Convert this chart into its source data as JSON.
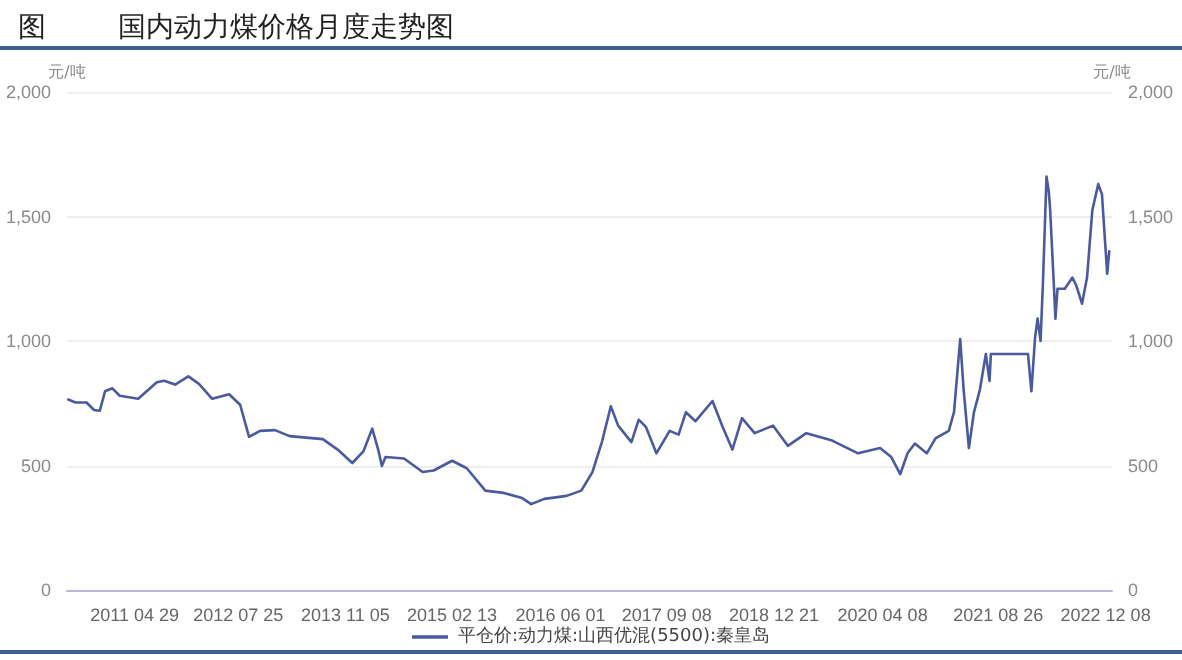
{
  "chart_data": {
    "type": "line",
    "title": "国内动力煤价格月度走势图",
    "annotations": [
      "图"
    ],
    "ylabel": "元/吨",
    "y2label": "元/吨",
    "xlim": [
      "2010-07-08",
      "2023-01-05"
    ],
    "xticks": [
      {
        "value": "2011-04-29",
        "label": "2011 04 29"
      },
      {
        "value": "2012-07-25",
        "label": "2012 07 25"
      },
      {
        "value": "2013-11-05",
        "label": "2013 11 05"
      },
      {
        "value": "2015-02-13",
        "label": "2015 02 13"
      },
      {
        "value": "2016-06-01",
        "label": "2016 06 01"
      },
      {
        "value": "2017-09-08",
        "label": "2017 09 08"
      },
      {
        "value": "2018-12-21",
        "label": "2018 12 21"
      },
      {
        "value": "2020-04-08",
        "label": "2020 04 08"
      },
      {
        "value": "2021-08-26",
        "label": "2021 08 26"
      },
      {
        "value": "2022-12-08",
        "label": "2022 12 08"
      }
    ],
    "ylim": [
      0,
      2000
    ],
    "yticks": [
      0,
      500,
      {
        "value": 1000,
        "label": "1,000"
      },
      {
        "value": 1500,
        "label": "1,500"
      },
      {
        "value": 2000,
        "label": "2,000"
      }
    ],
    "y2lim": [
      0,
      2000
    ],
    "y2ticks": [
      0,
      500,
      {
        "value": 1000,
        "label": "1,000"
      },
      {
        "value": 1500,
        "label": "1,500"
      },
      {
        "value": 2000,
        "label": "2,000"
      }
    ],
    "grid": "y",
    "legend": "bottom",
    "marker": "none",
    "line_style": "solid",
    "x": [
      "2010-07-13",
      "2010-08-14",
      "2010-10-01",
      "2010-11-03",
      "2010-11-28",
      "2010-12-21",
      "2011-01-22",
      "2011-02-23",
      "2011-05-15",
      "2011-08-04",
      "2011-09-05",
      "2011-10-23",
      "2011-12-20",
      "2012-02-04",
      "2012-04-02",
      "2012-06-15",
      "2012-08-02",
      "2012-09-10",
      "2012-10-28",
      "2013-01-01",
      "2013-03-06",
      "2013-07-29",
      "2013-10-02",
      "2013-12-05",
      "2014-01-23",
      "2014-03-02",
      "2014-03-28",
      "2014-04-13",
      "2014-04-29",
      "2014-07-19",
      "2014-10-08",
      "2014-11-25",
      "2015-02-14",
      "2015-04-19",
      "2015-07-09",
      "2015-09-27",
      "2015-12-17",
      "2016-01-25",
      "2016-03-23",
      "2016-06-28",
      "2016-08-31",
      "2016-10-19",
      "2016-11-29",
      "2017-01-07",
      "2017-02-08",
      "2017-04-07",
      "2017-05-09",
      "2017-06-10",
      "2017-07-25",
      "2017-09-21",
      "2017-10-30",
      "2017-12-01",
      "2018-01-12",
      "2018-03-27",
      "2018-05-11",
      "2018-06-22",
      "2018-08-03",
      "2018-09-27",
      "2018-12-17",
      "2019-02-19",
      "2019-05-11",
      "2019-09-01",
      "2019-12-23",
      "2020-03-28",
      "2020-05-16",
      "2020-06-24",
      "2020-07-26",
      "2020-08-27",
      "2020-10-18",
      "2020-11-25",
      "2021-01-22",
      "2021-02-14",
      "2021-03-13",
      "2021-03-28",
      "2021-04-20",
      "2021-05-12",
      "2021-06-07",
      "2021-07-03",
      "2021-07-19",
      "2021-07-25",
      "2022-01-03",
      "2022-01-18",
      "2022-02-03",
      "2022-02-14",
      "2022-02-27",
      "2022-03-09",
      "2022-03-25",
      "2022-04-04",
      "2022-04-10",
      "2022-04-26",
      "2022-05-03",
      "2022-05-12",
      "2022-06-13",
      "2022-07-16",
      "2022-08-01",
      "2022-08-27",
      "2022-09-18",
      "2022-10-11",
      "2022-11-06",
      "2022-11-22",
      "2022-12-15",
      "2022-12-24"
    ],
    "series": [
      {
        "name": "平仓价:动力煤:山西优混(5500):秦皇岛",
        "color": "#4a5a9e",
        "values": [
          765,
          753,
          753,
          723,
          720,
          798,
          810,
          780,
          768,
          834,
          840,
          825,
          858,
          828,
          768,
          786,
          744,
          615,
          639,
          642,
          618,
          606,
          564,
          510,
          558,
          648,
          564,
          498,
          534,
          528,
          474,
          480,
          519,
          489,
          399,
          390,
          369,
          345,
          366,
          378,
          399,
          474,
          594,
          738,
          660,
          594,
          684,
          654,
          549,
          639,
          624,
          714,
          678,
          759,
          654,
          564,
          690,
          630,
          660,
          579,
          630,
          600,
          549,
          570,
          534,
          465,
          549,
          588,
          549,
          609,
          639,
          714,
          1008,
          804,
          570,
          714,
          804,
          948,
          840,
          948,
          948,
          798,
          1014,
          1090,
          1000,
          1225,
          1660,
          1600,
          1525,
          1225,
          1090,
          1210,
          1210,
          1255,
          1225,
          1150,
          1255,
          1525,
          1630,
          1590,
          1270,
          1360
        ]
      }
    ]
  }
}
